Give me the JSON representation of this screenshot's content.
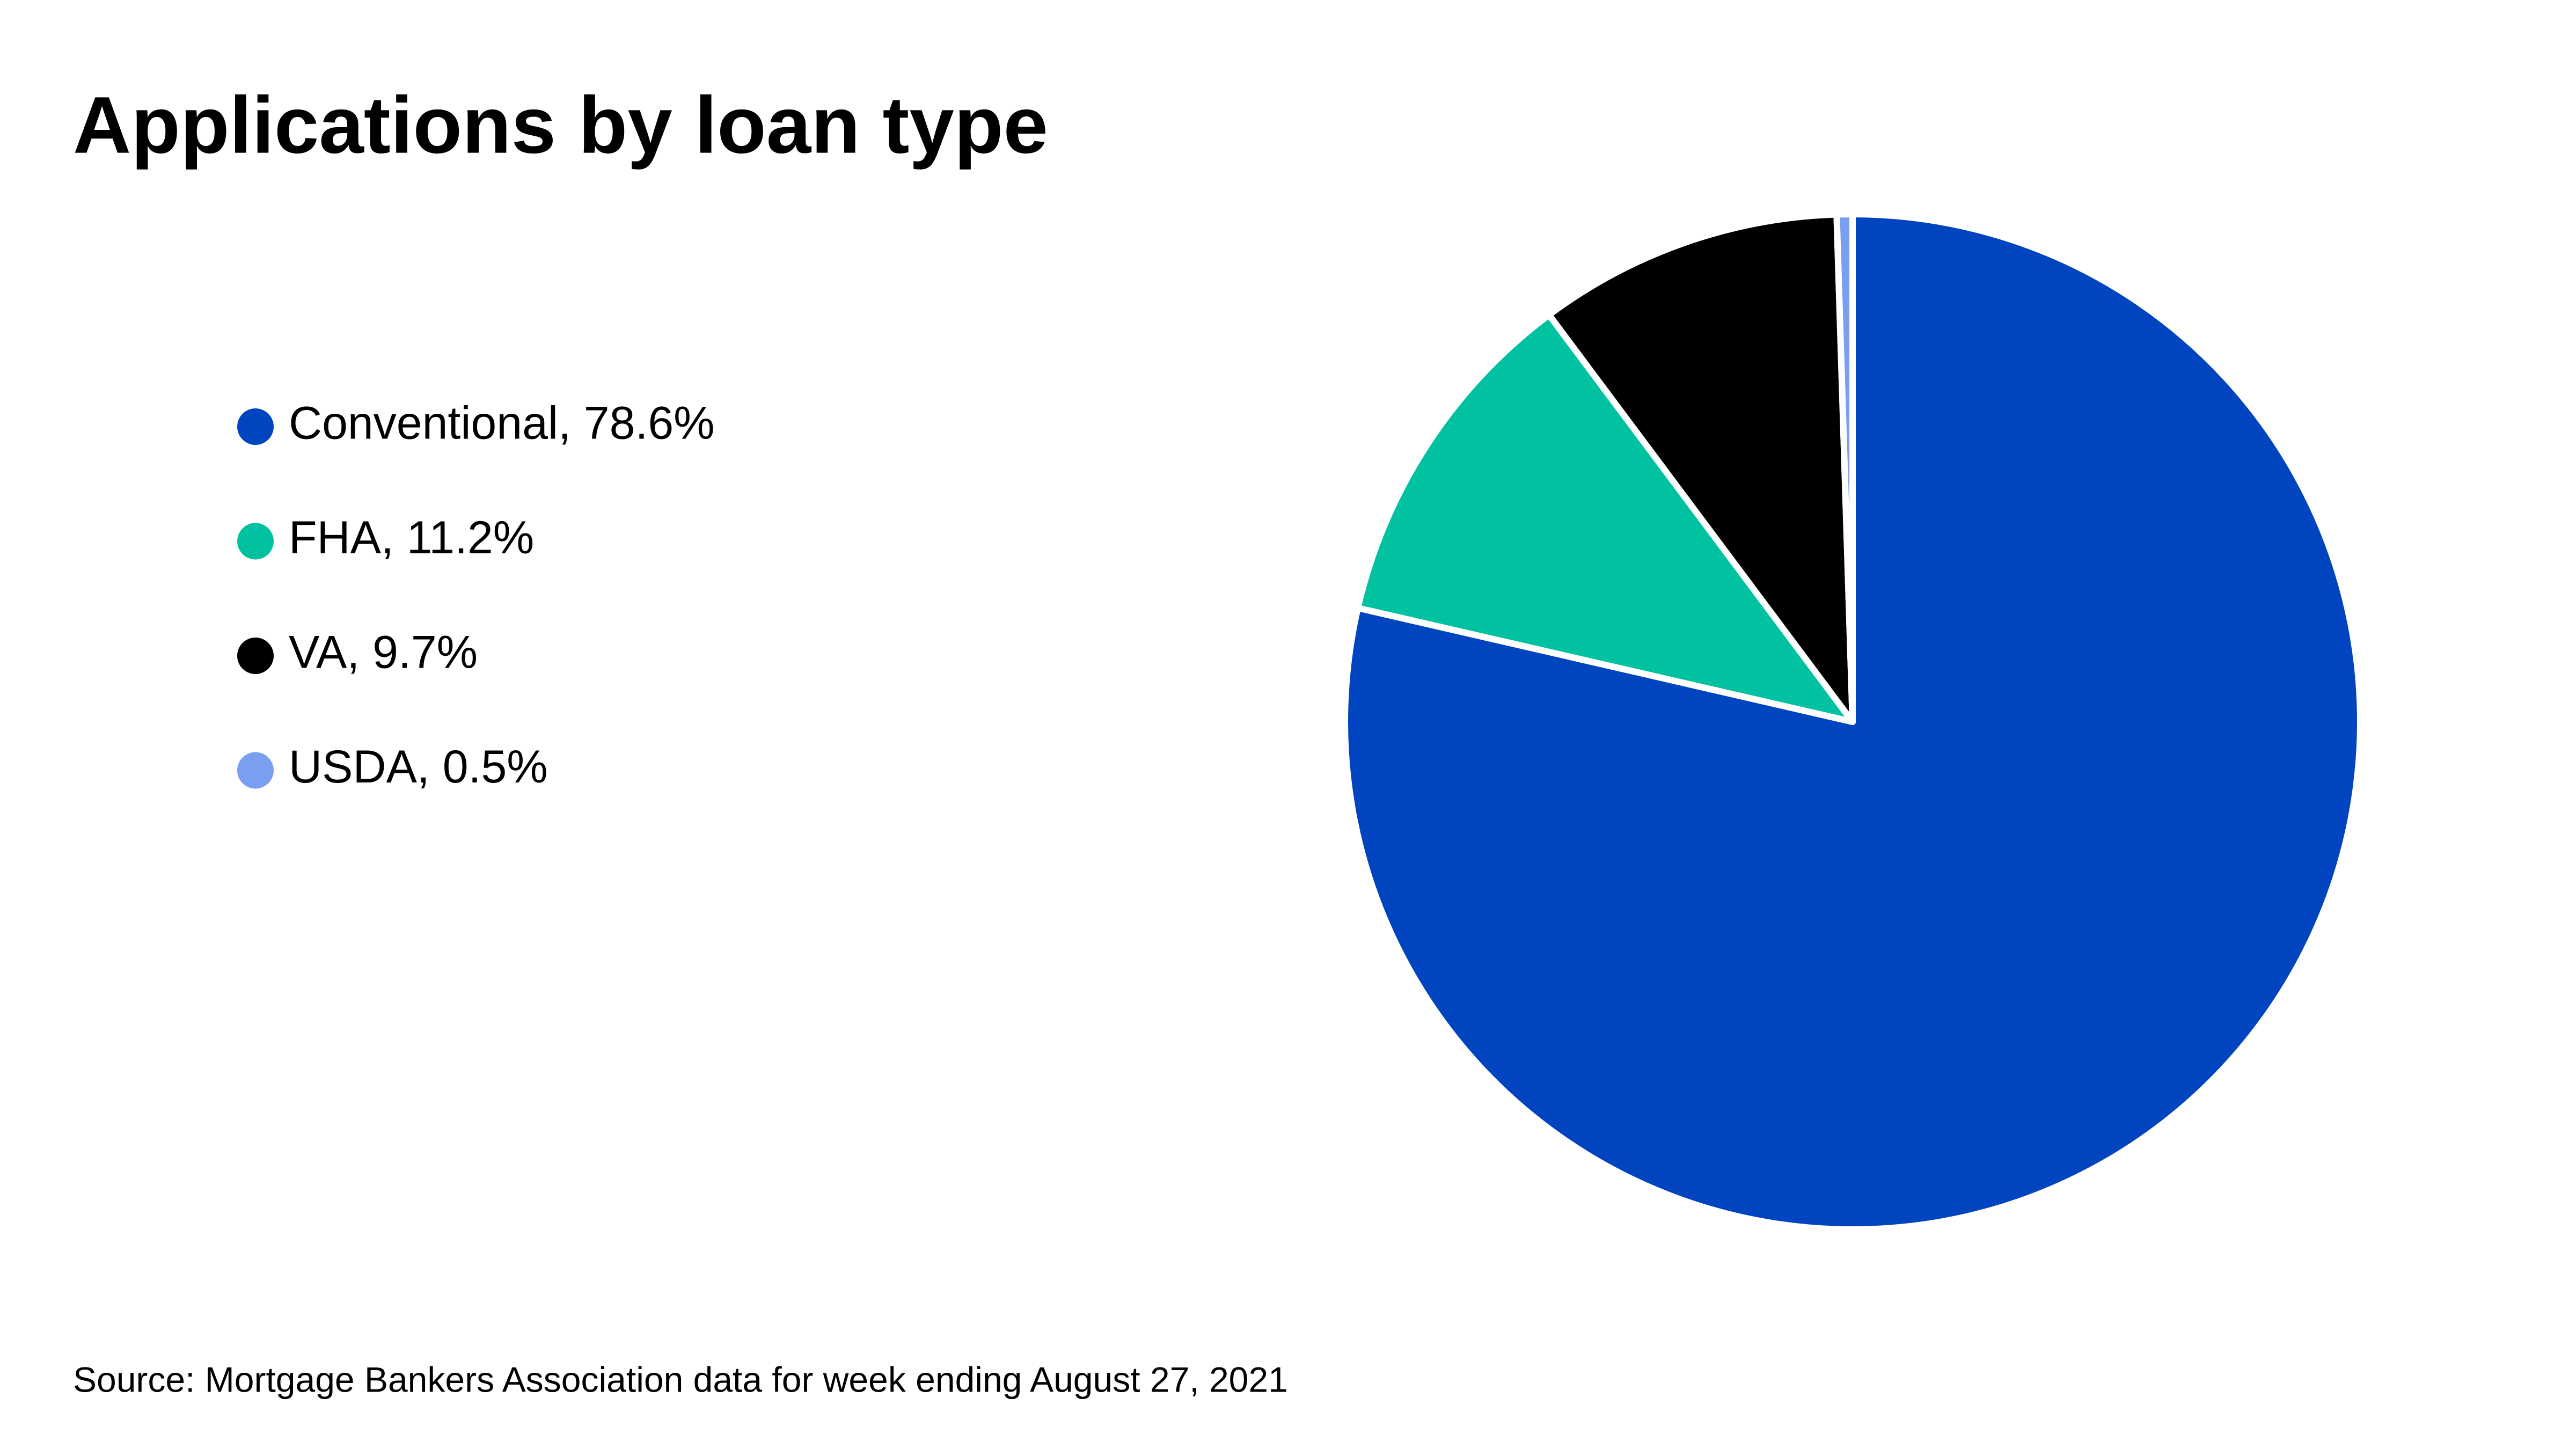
{
  "chart_data": {
    "type": "pie",
    "title": "Applications by loan type",
    "values": [
      78.6,
      11.2,
      9.7,
      0.5
    ],
    "value_labels": [
      "Conventional, 78.6%",
      "FHA, 11.2%",
      "VA, 9.7%",
      "USDA, 0.5%"
    ],
    "colors": [
      "#0044bf",
      "#00c2a0",
      "#000000",
      "#7a9ff0"
    ],
    "source": "Source: Mortgage Bankers Association data for week ending August 27, 2021"
  }
}
